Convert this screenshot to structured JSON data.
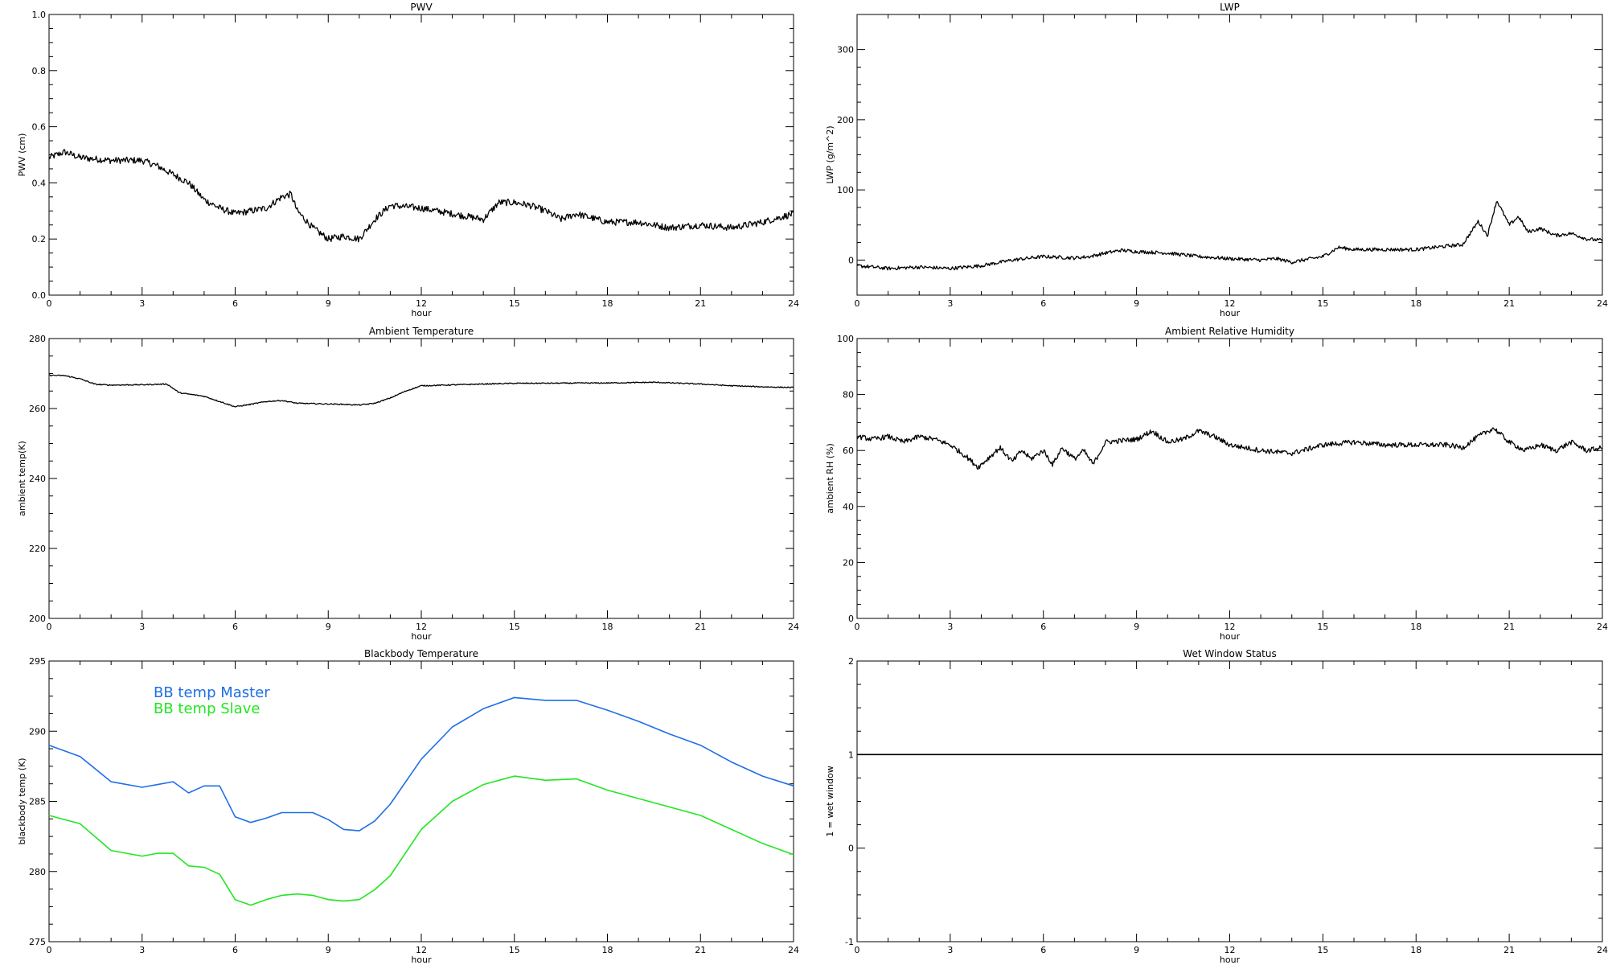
{
  "chart_data": [
    {
      "id": "pwv",
      "type": "line",
      "title": "PWV",
      "xlabel": "hour",
      "ylabel": "PWV (cm)",
      "xlim": [
        0,
        24
      ],
      "ylim": [
        0,
        1
      ],
      "xticks": [
        "0",
        "3",
        "6",
        "9",
        "12",
        "15",
        "18",
        "21",
        "24"
      ],
      "yticks": [
        "0.0",
        "0.2",
        "0.4",
        "0.6",
        "0.8",
        "1.0"
      ],
      "grid": false,
      "series": [
        {
          "color": "#000000",
          "noise": 0.012,
          "x": [
            0,
            0.5,
            1,
            2,
            3,
            3.5,
            4,
            4.5,
            5,
            5.5,
            6,
            6.5,
            7,
            7.5,
            7.8,
            8,
            8.5,
            9,
            9.5,
            10,
            10.5,
            11,
            12,
            13,
            14,
            14.5,
            15,
            15.5,
            16,
            16.5,
            17,
            18,
            19,
            20,
            21,
            22,
            23,
            24
          ],
          "y": [
            0.49,
            0.51,
            0.49,
            0.48,
            0.48,
            0.46,
            0.43,
            0.4,
            0.34,
            0.31,
            0.29,
            0.3,
            0.31,
            0.35,
            0.36,
            0.3,
            0.24,
            0.2,
            0.21,
            0.2,
            0.27,
            0.32,
            0.31,
            0.29,
            0.27,
            0.33,
            0.33,
            0.32,
            0.3,
            0.27,
            0.29,
            0.26,
            0.26,
            0.24,
            0.25,
            0.24,
            0.26,
            0.29
          ]
        }
      ]
    },
    {
      "id": "lwp",
      "type": "line",
      "title": "LWP",
      "xlabel": "hour",
      "ylabel": "LWP (g/m^2)",
      "xlim": [
        0,
        24
      ],
      "ylim": [
        -50,
        350
      ],
      "xticks": [
        "0",
        "3",
        "6",
        "9",
        "12",
        "15",
        "18",
        "21",
        "24"
      ],
      "yticks": [
        "0",
        "100",
        "200",
        "300"
      ],
      "ytickvals": [
        0,
        100,
        200,
        300
      ],
      "grid": false,
      "series": [
        {
          "color": "#000000",
          "noise": 2.5,
          "x": [
            0,
            1,
            2,
            3,
            4,
            5,
            6,
            7,
            7.5,
            8,
            8.5,
            9,
            10,
            11,
            12,
            13,
            13.5,
            14,
            15,
            15.5,
            16,
            17,
            18,
            19,
            19.5,
            20,
            20.3,
            20.6,
            21,
            21.3,
            21.6,
            22,
            22.5,
            23,
            23.5,
            24
          ],
          "y": [
            -8,
            -12,
            -10,
            -12,
            -8,
            0,
            5,
            3,
            5,
            10,
            14,
            12,
            10,
            5,
            2,
            0,
            2,
            -3,
            5,
            18,
            15,
            15,
            15,
            20,
            22,
            55,
            35,
            85,
            50,
            62,
            40,
            45,
            35,
            38,
            30,
            28
          ]
        }
      ]
    },
    {
      "id": "ambient-temp",
      "type": "line",
      "title": "Ambient Temperature",
      "xlabel": "hour",
      "ylabel": "ambient temp(K)",
      "xlim": [
        0,
        24
      ],
      "ylim": [
        200,
        280
      ],
      "xticks": [
        "0",
        "3",
        "6",
        "9",
        "12",
        "15",
        "18",
        "21",
        "24"
      ],
      "yticks": [
        "200",
        "220",
        "240",
        "260",
        "280"
      ],
      "ytickvals": [
        200,
        220,
        240,
        260,
        280
      ],
      "grid": false,
      "series": [
        {
          "color": "#000000",
          "noise": 0.15,
          "x": [
            0,
            0.5,
            1,
            1.5,
            2,
            3,
            3.8,
            4.2,
            5,
            5.5,
            6,
            6.5,
            7,
            7.5,
            8,
            9,
            9.5,
            10,
            10.5,
            11,
            11.5,
            12,
            14,
            15,
            18,
            19.5,
            21,
            22,
            23,
            24
          ],
          "y": [
            269.5,
            269.4,
            268.5,
            266.9,
            266.7,
            266.8,
            267,
            264.5,
            263.5,
            262,
            260.5,
            261.2,
            262,
            262.3,
            261.5,
            261.3,
            261.2,
            261,
            261.5,
            263,
            265,
            266.5,
            267,
            267.2,
            267.3,
            267.5,
            267,
            266.5,
            266.2,
            266
          ]
        }
      ]
    },
    {
      "id": "ambient-rh",
      "type": "line",
      "title": "Ambient Relative Humidity",
      "xlabel": "hour",
      "ylabel": "ambient RH (%)",
      "xlim": [
        0,
        24
      ],
      "ylim": [
        0,
        100
      ],
      "xticks": [
        "0",
        "3",
        "6",
        "9",
        "12",
        "15",
        "18",
        "21",
        "24"
      ],
      "yticks": [
        "0",
        "20",
        "40",
        "60",
        "80",
        "100"
      ],
      "ytickvals": [
        0,
        20,
        40,
        60,
        80,
        100
      ],
      "grid": false,
      "series": [
        {
          "color": "#000000",
          "noise": 0.9,
          "x": [
            0,
            0.5,
            1,
            1.5,
            2,
            2.5,
            3,
            3.5,
            3.9,
            4.3,
            4.6,
            5,
            5.3,
            5.6,
            6,
            6.3,
            6.6,
            7,
            7.3,
            7.6,
            8,
            9,
            9.5,
            10,
            10.5,
            11,
            11.5,
            12,
            13,
            14,
            15,
            16,
            17,
            18,
            19,
            19.5,
            20,
            20.5,
            21,
            21.5,
            22,
            22.5,
            23,
            23.5,
            24
          ],
          "y": [
            65,
            64,
            65,
            63,
            65,
            64,
            62,
            58,
            54,
            58,
            61,
            56,
            60,
            57,
            60,
            55,
            61,
            57,
            60,
            55,
            63,
            64,
            67,
            63,
            64,
            67,
            65,
            62,
            60,
            59,
            62,
            63,
            62,
            62,
            62,
            61,
            65,
            68,
            63,
            60,
            62,
            60,
            63,
            60,
            61
          ]
        }
      ]
    },
    {
      "id": "blackbody-temp",
      "type": "line",
      "title": "Blackbody Temperature",
      "xlabel": "hour",
      "ylabel": "blackbody temp (K)",
      "xlim": [
        0,
        24
      ],
      "ylim": [
        275,
        295
      ],
      "xticks": [
        "0",
        "3",
        "6",
        "9",
        "12",
        "15",
        "18",
        "21",
        "24"
      ],
      "yticks": [
        "275",
        "280",
        "285",
        "290",
        "295"
      ],
      "ytickvals": [
        275,
        280,
        285,
        290,
        295
      ],
      "grid": false,
      "legend_placement": "top-left",
      "series": [
        {
          "name": "BB temp Master",
          "color": "#1e6fe6",
          "noise": 0,
          "x": [
            0,
            1,
            2,
            3,
            3.5,
            4,
            4.5,
            5,
            5.5,
            6,
            6.5,
            7,
            7.5,
            8,
            8.5,
            9,
            9.5,
            10,
            10.5,
            11,
            12,
            13,
            14,
            15,
            16,
            17,
            18,
            19,
            20,
            21,
            22,
            23,
            24
          ],
          "y": [
            289,
            288.2,
            286.4,
            286.0,
            286.2,
            286.4,
            285.6,
            286.1,
            286.1,
            283.9,
            283.5,
            283.8,
            284.2,
            284.2,
            284.2,
            283.7,
            283.0,
            282.9,
            283.6,
            284.8,
            288,
            290.3,
            291.6,
            292.4,
            292.2,
            292.2,
            291.5,
            290.7,
            289.8,
            289.0,
            287.8,
            286.8,
            286.1
          ]
        },
        {
          "name": "BB temp Slave",
          "color": "#22e622",
          "noise": 0,
          "x": [
            0,
            1,
            2,
            3,
            3.5,
            4,
            4.5,
            5,
            5.5,
            6,
            6.5,
            7,
            7.5,
            8,
            8.5,
            9,
            9.5,
            10,
            10.5,
            11,
            12,
            13,
            14,
            15,
            16,
            17,
            18,
            19,
            20,
            21,
            22,
            23,
            24
          ],
          "y": [
            284,
            283.4,
            281.5,
            281.1,
            281.3,
            281.3,
            280.4,
            280.3,
            279.8,
            278.0,
            277.6,
            278.0,
            278.3,
            278.4,
            278.3,
            278.0,
            277.9,
            278.0,
            278.7,
            279.7,
            283.0,
            285.0,
            286.2,
            286.8,
            286.5,
            286.6,
            285.8,
            285.2,
            284.6,
            284.0,
            283.0,
            282.0,
            281.2
          ]
        }
      ]
    },
    {
      "id": "wet-window",
      "type": "line",
      "title": "Wet Window Status",
      "xlabel": "hour",
      "ylabel": "1 = wet window",
      "xlim": [
        0,
        24
      ],
      "ylim": [
        -1,
        2
      ],
      "xticks": [
        "0",
        "3",
        "6",
        "9",
        "12",
        "15",
        "18",
        "21",
        "24"
      ],
      "yticks": [
        "-1",
        "0",
        "1",
        "2"
      ],
      "ytickvals": [
        -1,
        0,
        1,
        2
      ],
      "grid": false,
      "series": [
        {
          "color": "#000000",
          "noise": 0,
          "x": [
            0,
            24
          ],
          "y": [
            1,
            1
          ]
        }
      ]
    }
  ]
}
